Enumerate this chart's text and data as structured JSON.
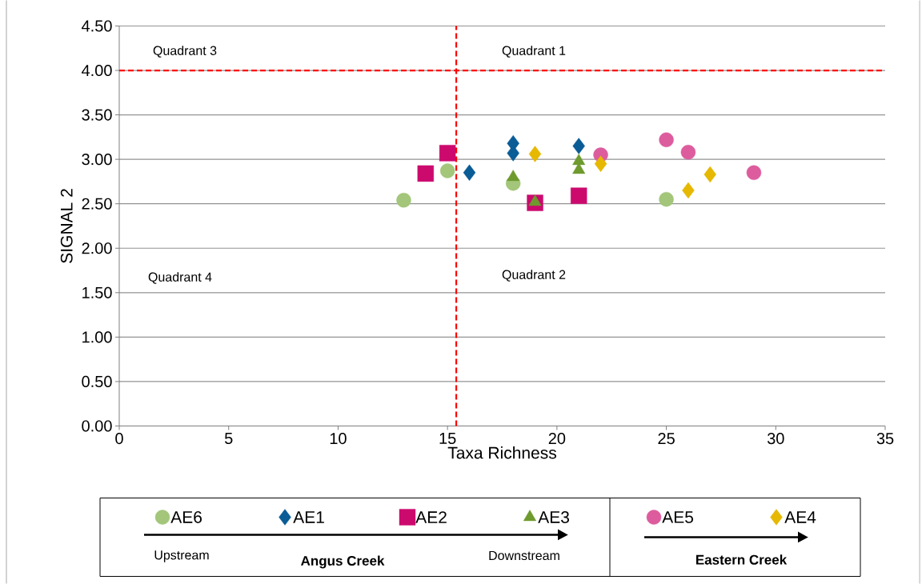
{
  "chart_data": {
    "type": "scatter",
    "xlabel": "Taxa Richness",
    "ylabel": "SIGNAL 2",
    "xlim": [
      0,
      35
    ],
    "xticks": [
      0,
      5,
      10,
      15,
      20,
      25,
      30,
      35
    ],
    "ylim": [
      0,
      4.5
    ],
    "yticks": [
      {
        "value": 0,
        "label": "0.00"
      },
      {
        "value": 0.5,
        "label": "0.50"
      },
      {
        "value": 1,
        "label": "1.00"
      },
      {
        "value": 1.5,
        "label": "1.50"
      },
      {
        "value": 2,
        "label": "2.00"
      },
      {
        "value": 2.5,
        "label": "2.50"
      },
      {
        "value": 3,
        "label": "3.00"
      },
      {
        "value": 3.5,
        "label": "3.50"
      },
      {
        "value": 4,
        "label": "4.00"
      },
      {
        "value": 4.5,
        "label": "4.50"
      }
    ],
    "grid": "y",
    "legend": "bottom",
    "series": [
      {
        "name": "AE6",
        "color": "#a3c67a",
        "marker": "circle",
        "x": [
          13,
          15,
          18,
          25
        ],
        "values": [
          2.54,
          2.87,
          2.73,
          2.55
        ]
      },
      {
        "name": "AE1",
        "color": "#0a5c96",
        "marker": "diamond",
        "x": [
          16,
          18,
          18,
          21
        ],
        "values": [
          2.85,
          3.18,
          3.07,
          3.15
        ]
      },
      {
        "name": "AE2",
        "color": "#cc0a6e",
        "marker": "square",
        "x": [
          14,
          15,
          19,
          21
        ],
        "values": [
          2.84,
          3.07,
          2.51,
          2.59
        ]
      },
      {
        "name": "AE3",
        "color": "#6e9a2e",
        "marker": "triangle",
        "x": [
          18,
          19,
          21,
          21
        ],
        "values": [
          2.8,
          2.52,
          2.98,
          2.88
        ]
      },
      {
        "name": "AE5",
        "color": "#dc5c9e",
        "marker": "circle",
        "x": [
          22,
          25,
          26,
          29
        ],
        "values": [
          3.05,
          3.22,
          3.08,
          2.85
        ]
      },
      {
        "name": "AE4",
        "color": "#e6b800",
        "marker": "diamond",
        "x": [
          19,
          22,
          26,
          27
        ],
        "values": [
          3.06,
          2.95,
          2.65,
          2.83
        ]
      }
    ],
    "ref_lines": [
      {
        "axis": "x",
        "value": 15.4,
        "color": "#ff0000",
        "line_style": "dashed"
      },
      {
        "axis": "y",
        "value": 4,
        "color": "#ff0000",
        "line_style": "dashed"
      }
    ],
    "annotations": [
      "Quadrant 3",
      "Quadrant 1",
      "Quadrant 4",
      "Quadrant 2",
      "Upstream",
      "Angus Creek",
      "Downstream",
      "Eastern Creek"
    ]
  }
}
